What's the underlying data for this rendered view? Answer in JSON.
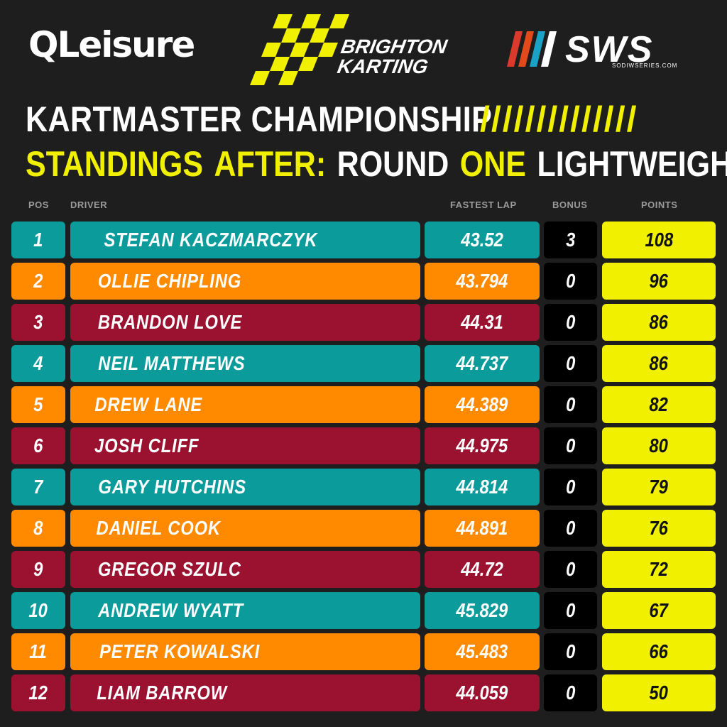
{
  "logos": {
    "qleisure": "QLeisure",
    "brighton_karting_line1": "BRIGHTON",
    "brighton_karting_line2": "KARTING",
    "sws": "SWS",
    "sws_sub": "SODIWSERIES.COM"
  },
  "title": {
    "line1": "KARTMASTER CHAMPIONSHIP",
    "slashes": "//////////////",
    "line2_parts": [
      "STANDINGS",
      "AFTER:",
      "ROUND",
      "ONE",
      "LIGHTWEIGHT"
    ]
  },
  "headers": {
    "pos": "POS",
    "driver": "DRIVER",
    "fastest_lap": "FASTEST LAP",
    "bonus": "BONUS",
    "points": "POINTS"
  },
  "colors": {
    "teal": "#0b9b9b",
    "orange": "#ff8a00",
    "maroon": "#9a1230",
    "yellow": "#f0f000",
    "background": "#1e1e1e"
  },
  "rows": [
    {
      "pos": "1",
      "driver": "STEFAN KACZMARCZYK",
      "lap": "43.52",
      "bonus": "3",
      "points": "108",
      "color": "#0b9b9b"
    },
    {
      "pos": "2",
      "driver": "OLLIE CHIPLING",
      "lap": "43.794",
      "bonus": "0",
      "points": "96",
      "color": "#ff8a00"
    },
    {
      "pos": "3",
      "driver": "BRANDON LOVE",
      "lap": "44.31",
      "bonus": "0",
      "points": "86",
      "color": "#9a1230"
    },
    {
      "pos": "4",
      "driver": "NEIL MATTHEWS",
      "lap": "44.737",
      "bonus": "0",
      "points": "86",
      "color": "#0b9b9b"
    },
    {
      "pos": "5",
      "driver": "DREW LANE",
      "lap": "44.389",
      "bonus": "0",
      "points": "82",
      "color": "#ff8a00"
    },
    {
      "pos": "6",
      "driver": "JOSH CLIFF",
      "lap": "44.975",
      "bonus": "0",
      "points": "80",
      "color": "#9a1230"
    },
    {
      "pos": "7",
      "driver": "GARY HUTCHINS",
      "lap": "44.814",
      "bonus": "0",
      "points": "79",
      "color": "#0b9b9b"
    },
    {
      "pos": "8",
      "driver": "DANIEL COOK",
      "lap": "44.891",
      "bonus": "0",
      "points": "76",
      "color": "#ff8a00"
    },
    {
      "pos": "9",
      "driver": "GREGOR SZULC",
      "lap": "44.72",
      "bonus": "0",
      "points": "72",
      "color": "#9a1230"
    },
    {
      "pos": "10",
      "driver": "ANDREW WYATT",
      "lap": "45.829",
      "bonus": "0",
      "points": "67",
      "color": "#0b9b9b"
    },
    {
      "pos": "11",
      "driver": "PETER KOWALSKI",
      "lap": "45.483",
      "bonus": "0",
      "points": "66",
      "color": "#ff8a00"
    },
    {
      "pos": "12",
      "driver": "LIAM BARROW",
      "lap": "44.059",
      "bonus": "0",
      "points": "50",
      "color": "#9a1230"
    }
  ]
}
